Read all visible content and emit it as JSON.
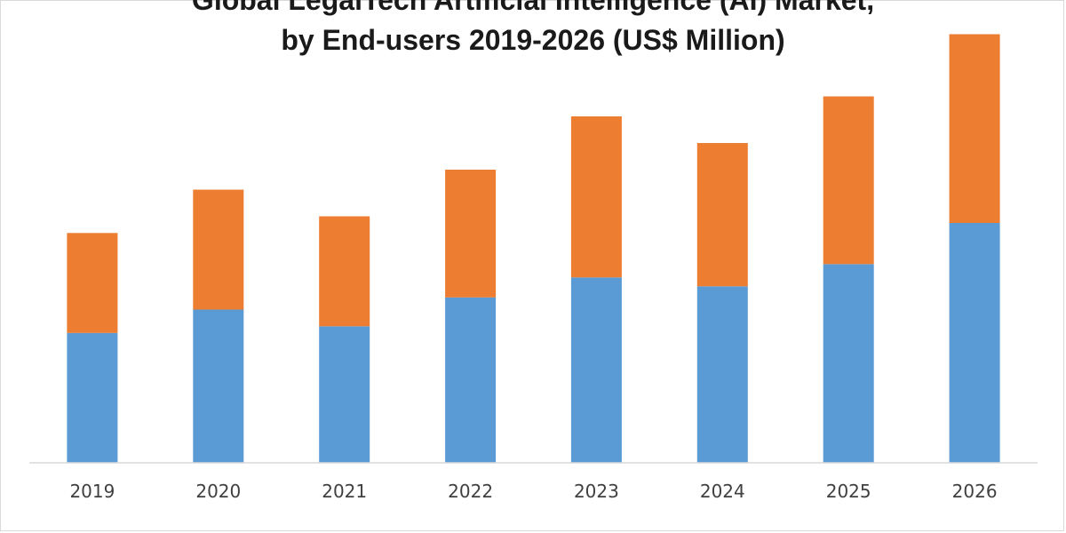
{
  "chart_data": {
    "type": "bar",
    "stacked": true,
    "title_lines": [
      "Global LegalTech Artificial Intelligence (AI) Market,",
      "by End-users 2019-2026 (US$ Million)"
    ],
    "xlabel": "",
    "ylabel": "",
    "categories": [
      "2019",
      "2020",
      "2021",
      "2022",
      "2023",
      "2024",
      "2025",
      "2026"
    ],
    "series": [
      {
        "color": "#5b9bd5",
        "values": [
          117,
          138,
          123,
          149,
          167,
          159,
          179,
          216
        ]
      },
      {
        "color": "#ed7d31",
        "values": [
          90,
          108,
          99,
          115,
          145,
          129,
          151,
          170
        ]
      }
    ],
    "ylim": [
      0,
      400
    ],
    "grid": false,
    "legend": "bottom"
  }
}
